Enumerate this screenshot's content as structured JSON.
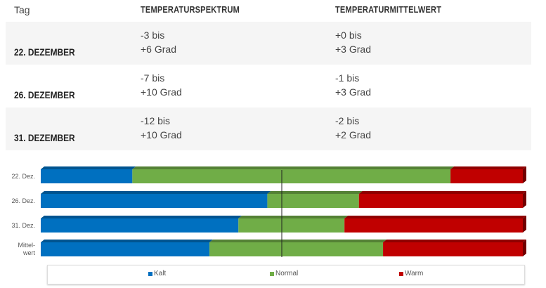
{
  "table": {
    "headers": [
      "Tag",
      "TEMPERATURSPEKTRUM",
      "TEMPERATURMITTELWERT"
    ],
    "rows": [
      {
        "day": "22. DEZEMBER",
        "range": [
          "-3 bis",
          "+6 Grad"
        ],
        "mean": [
          "+0 bis",
          "+3 Grad"
        ]
      },
      {
        "day": "26. DEZEMBER",
        "range": [
          "-7 bis",
          "+10 Grad"
        ],
        "mean": [
          "-1 bis",
          "+3 Grad"
        ]
      },
      {
        "day": "31. DEZEMBER",
        "range": [
          "-12 bis",
          "+10 Grad"
        ],
        "mean": [
          "-2 bis",
          "+2 Grad"
        ]
      }
    ]
  },
  "chart_data": {
    "type": "bar",
    "stacked": true,
    "orientation": "horizontal",
    "unit": "percent",
    "categories": [
      "22. Dez.",
      "26. Dez.",
      "31. Dez.",
      "Mittel-\nwert"
    ],
    "series": [
      {
        "name": "Kalt",
        "color": "#0070c0",
        "values": [
          19,
          47,
          41,
          35
        ]
      },
      {
        "name": "Normal",
        "color": "#70ad47",
        "values": [
          66,
          19,
          22,
          36
        ]
      },
      {
        "name": "Warm",
        "color": "#c00000",
        "values": [
          15,
          34,
          37,
          29
        ]
      }
    ],
    "reference_line": 50,
    "xlim": [
      0,
      100
    ],
    "legend": "bottom"
  }
}
